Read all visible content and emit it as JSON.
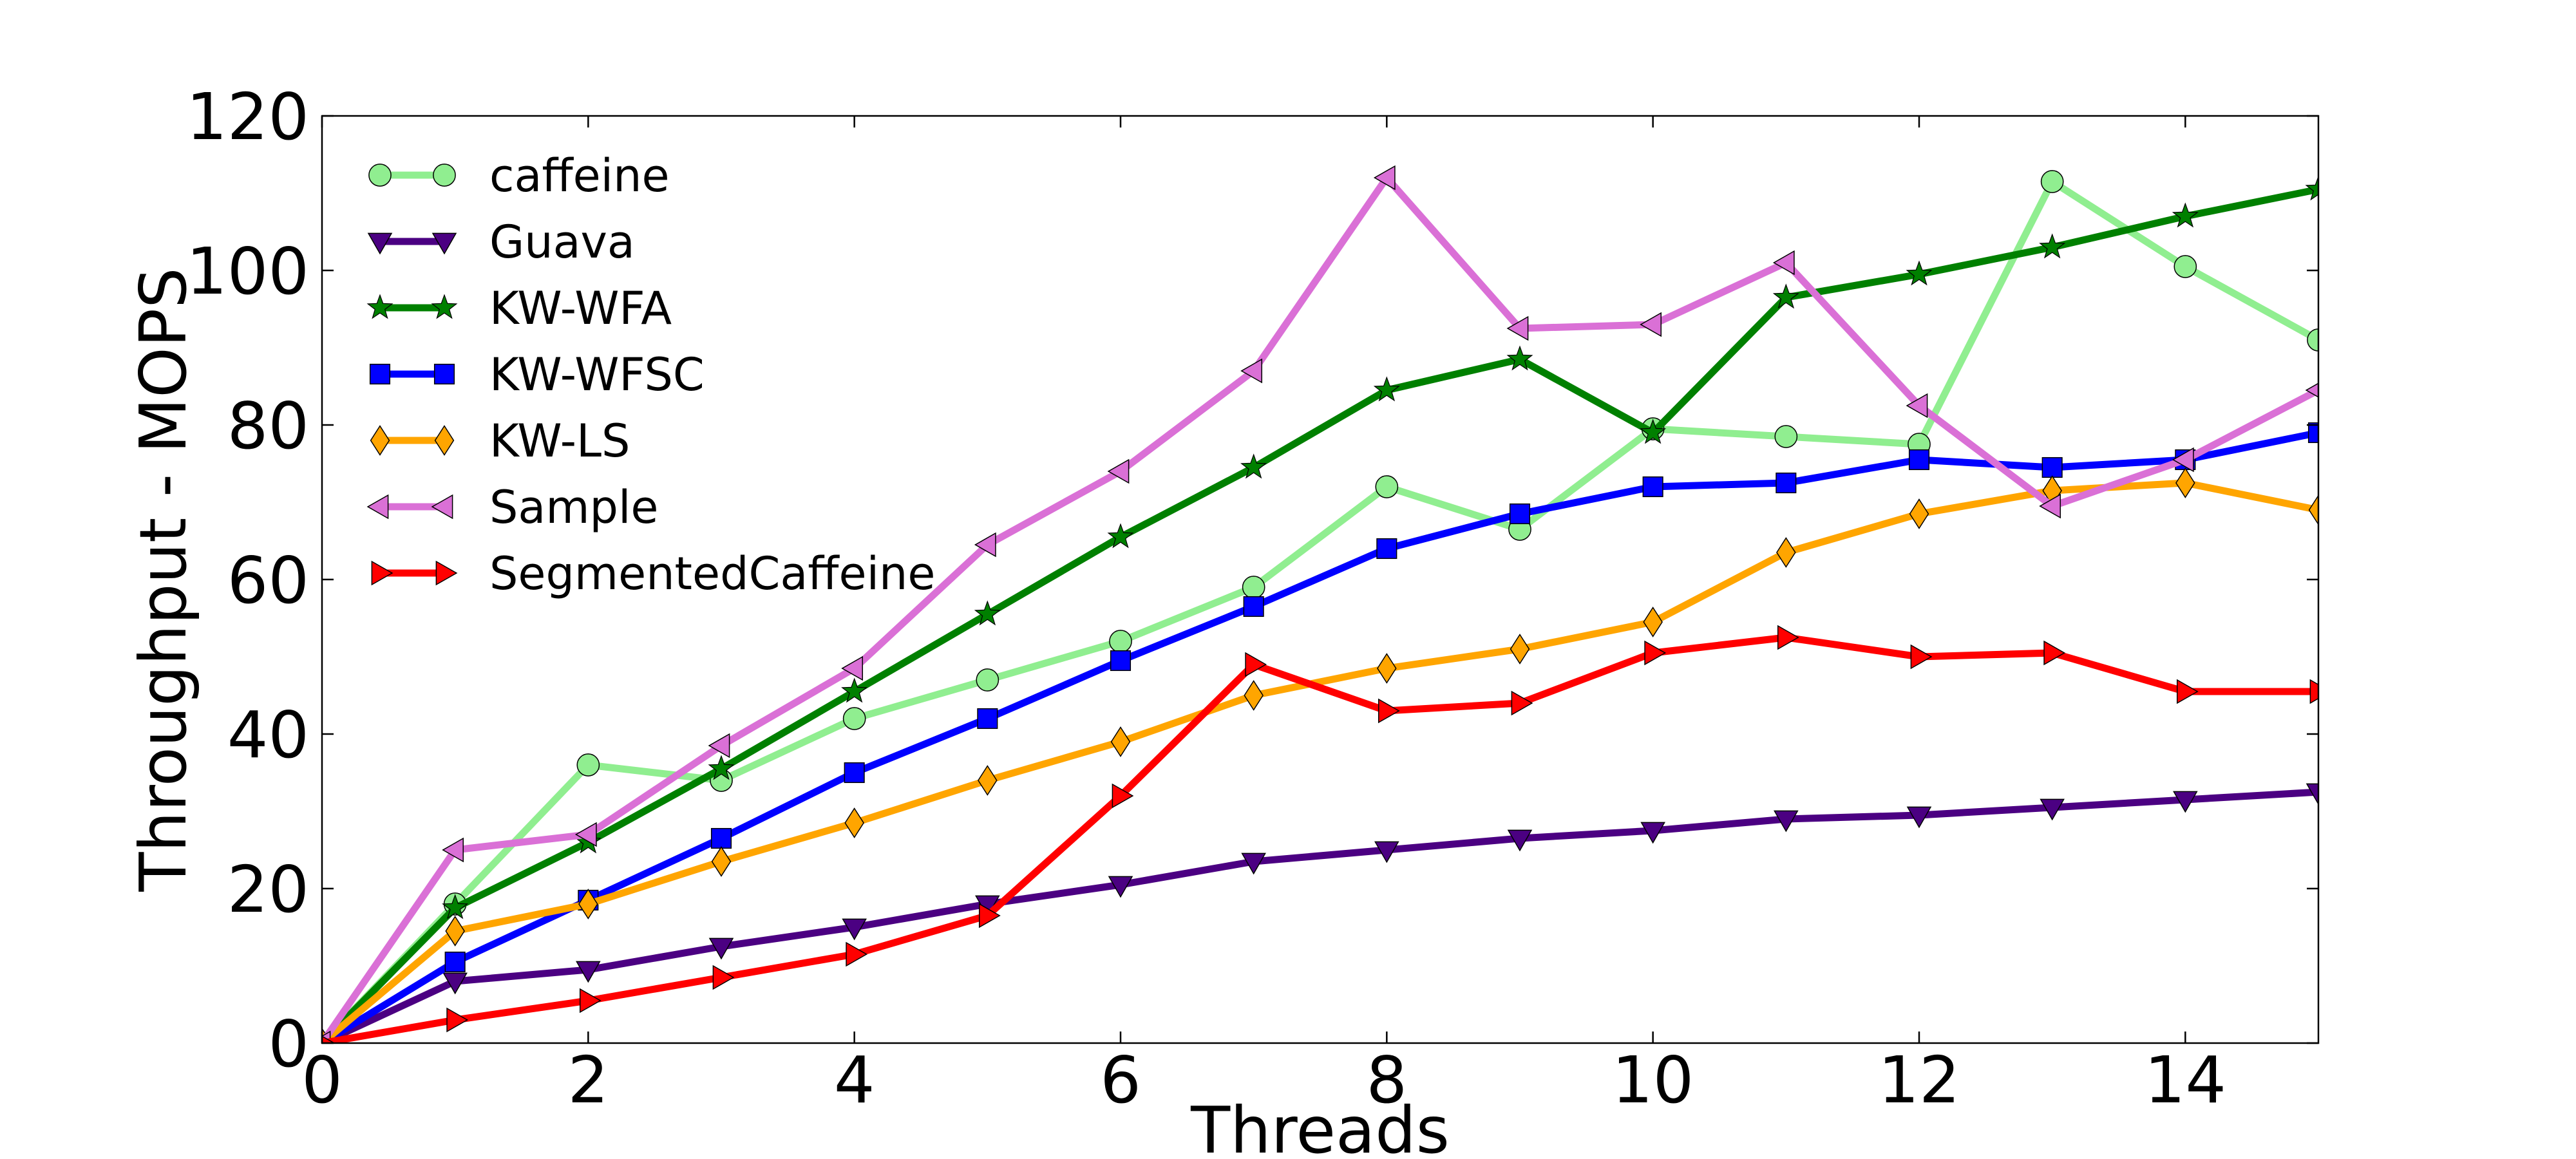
{
  "chart_data": {
    "type": "line",
    "title": "",
    "xlabel": "Threads",
    "ylabel": "Throughput - MOPS",
    "xlim": [
      0,
      15
    ],
    "ylim": [
      0,
      120
    ],
    "xticks": [
      0,
      2,
      4,
      6,
      8,
      10,
      12,
      14
    ],
    "yticks": [
      0,
      20,
      40,
      60,
      80,
      100,
      120
    ],
    "grid": false,
    "legend_position": "top-left",
    "x": [
      0,
      1,
      2,
      3,
      4,
      5,
      6,
      7,
      8,
      9,
      10,
      11,
      12,
      13,
      14,
      15
    ],
    "series": [
      {
        "name": "caffeine",
        "color": "#90ee90",
        "marker": "circle",
        "values": [
          0,
          18,
          36,
          34,
          42,
          47,
          52,
          59,
          72,
          66.5,
          79.5,
          78.5,
          77.5,
          111.5,
          100.5,
          91
        ]
      },
      {
        "name": "Guava",
        "color": "#4b0082",
        "marker": "triangle-down",
        "values": [
          0,
          8,
          9.5,
          12.5,
          15,
          18,
          20.5,
          23.5,
          25,
          26.5,
          27.5,
          29,
          29.5,
          30.5,
          31.5,
          32.5
        ]
      },
      {
        "name": "KW-WFA",
        "color": "#008000",
        "marker": "star",
        "values": [
          0,
          17.5,
          26,
          35.5,
          45.5,
          55.5,
          65.5,
          74.5,
          84.5,
          88.5,
          79,
          96.5,
          99.5,
          103,
          107,
          110.5
        ]
      },
      {
        "name": "KW-WFSC",
        "color": "#0000ff",
        "marker": "square",
        "values": [
          0,
          10.5,
          18.5,
          26.5,
          35,
          42,
          49.5,
          56.5,
          64,
          68.5,
          72,
          72.5,
          75.5,
          74.5,
          75.5,
          79
        ]
      },
      {
        "name": "KW-LS",
        "color": "#ffa500",
        "marker": "diamond",
        "values": [
          0,
          14.5,
          18,
          23.5,
          28.5,
          34,
          39,
          45,
          48.5,
          51,
          54.5,
          63.5,
          68.5,
          71.5,
          72.5,
          69
        ]
      },
      {
        "name": "Sample",
        "color": "#da70d6",
        "marker": "triangle-left",
        "values": [
          0,
          25,
          27,
          38.5,
          48.5,
          64.5,
          74,
          87,
          112,
          92.5,
          93,
          101,
          82.5,
          69.5,
          75.5,
          84.5
        ]
      },
      {
        "name": "SegmentedCaffeine",
        "color": "#ff0000",
        "marker": "triangle-right",
        "values": [
          0,
          3,
          5.5,
          8.5,
          11.5,
          16.5,
          32,
          49,
          43,
          44,
          50.5,
          52.5,
          50,
          50.5,
          45.5,
          45.5
        ]
      }
    ]
  }
}
